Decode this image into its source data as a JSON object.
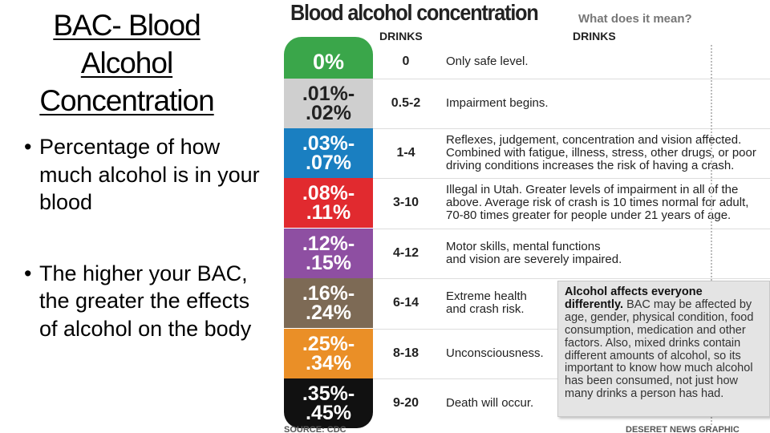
{
  "slide": {
    "title": "BAC- Blood Alcohol Concentration",
    "bullets": [
      "Percentage of how much alcohol is in your blood",
      "The higher your BAC, the greater the effects of alcohol on the body"
    ]
  },
  "graphic": {
    "title": "Blood alcohol concentration",
    "subtitle": "What does it mean?",
    "col_drinks_1": "DRINKS",
    "col_drinks_2": "DRINKS",
    "rows": [
      {
        "bac_1": "0%",
        "bac_2": "",
        "drinks": "0",
        "effect": [
          "Only safe level."
        ],
        "color": "#3aa64a"
      },
      {
        "bac_1": ".01%-",
        "bac_2": ".02%",
        "drinks": "0.5-2",
        "effect": [
          "Impairment begins."
        ],
        "color": "#cfcfcf"
      },
      {
        "bac_1": ".03%-",
        "bac_2": ".07%",
        "drinks": "1-4",
        "effect": [
          "Reflexes, judgement, concentration and vision affected.",
          "Combined with fatigue, illness, stress, other drugs, or poor",
          "driving conditions increases the risk of having a crash."
        ],
        "color": "#1a7fc1"
      },
      {
        "bac_1": ".08%-",
        "bac_2": ".11%",
        "drinks": "3-10",
        "effect": [
          "Illegal in Utah. Greater levels of impairment in all of the",
          "above. Average risk of crash is 10 times normal for adult,",
          "70-80 times greater for people under 21 years of age."
        ],
        "color": "#e12a2f"
      },
      {
        "bac_1": ".12%-",
        "bac_2": ".15%",
        "drinks": "4-12",
        "effect": [
          "Motor skills, mental functions",
          "and vision are severely impaired."
        ],
        "color": "#8e4fa2"
      },
      {
        "bac_1": ".16%-",
        "bac_2": ".24%",
        "drinks": "6-14",
        "effect": [
          "Extreme health",
          "and crash risk."
        ],
        "color": "#7d6a55"
      },
      {
        "bac_1": ".25%-",
        "bac_2": ".34%",
        "drinks": "8-18",
        "effect": [
          "Unconsciousness."
        ],
        "color": "#ea8f27"
      },
      {
        "bac_1": ".35%-",
        "bac_2": ".45%",
        "drinks": "9-20",
        "effect": [
          "Death will occur."
        ],
        "color": "#111111"
      }
    ],
    "info_box": {
      "heading": "Alcohol affects everyone differently.",
      "body": "BAC may be affected by age, gender, physical condition, food consumption, medication and other factors. Also, mixed drinks contain different amounts of alcohol, so its important to know how much alcohol has been consumed, not just how many drinks a person has had."
    },
    "source": "SOURCE: CDC",
    "credit": "DESERET NEWS GRAPHIC"
  }
}
